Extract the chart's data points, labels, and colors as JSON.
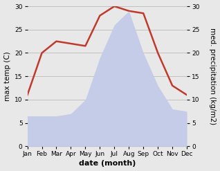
{
  "months": [
    "Jan",
    "Feb",
    "Mar",
    "Apr",
    "May",
    "Jun",
    "Jul",
    "Aug",
    "Sep",
    "Oct",
    "Nov",
    "Dec"
  ],
  "temp": [
    11,
    20,
    22.5,
    22,
    21.5,
    28,
    30,
    29,
    28.5,
    20,
    13,
    11
  ],
  "precip": [
    6.5,
    6.5,
    6.5,
    7,
    10,
    19,
    26,
    29,
    20,
    13,
    8,
    7.5
  ],
  "temp_color": "#c0392b",
  "precip_fill_color": "#c5cce8",
  "precip_edge_color": "#aab4d8",
  "ylim_left": [
    0,
    30
  ],
  "ylim_right": [
    0,
    30
  ],
  "yticks": [
    0,
    5,
    10,
    15,
    20,
    25,
    30
  ],
  "ylabel_left": "max temp (C)",
  "ylabel_right": "med. precipitation (kg/m2)",
  "xlabel": "date (month)",
  "bg_color": "#e8e8e8",
  "plot_bg_color": "#e8e8e8",
  "grid_color": "#bbbbbb",
  "temp_linewidth": 1.8,
  "tick_fontsize": 6.5,
  "xlabel_fontsize": 8,
  "ylabel_fontsize": 7.5
}
